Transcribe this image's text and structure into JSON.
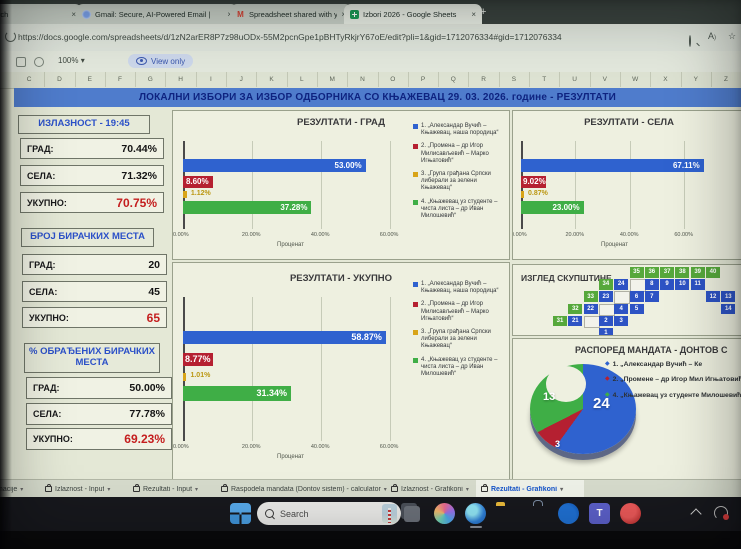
{
  "browser": {
    "tabs": [
      {
        "title": "- Search",
        "icon": "none",
        "active": false
      },
      {
        "title": "Gmail: Secure, AI-Powered Email |",
        "icon": "sparkle",
        "active": false
      },
      {
        "title": "Spreadsheet shared with you: “Izl",
        "icon": "gmail",
        "active": false
      },
      {
        "title": "Izbori 2026 - Google Sheets",
        "icon": "sheets",
        "active": true
      }
    ],
    "new_tab": "+",
    "close": "×",
    "url": "https://docs.google.com/spreadsheets/d/1zN2arER8P7z98uODx-55M2pcnGpe1pBHTyRkjrY67oE/edit?pli=1&gid=1712076334#gid=1712076334"
  },
  "toolbar": {
    "zoom": "100%",
    "zoom_arrow": "▾",
    "view_only": "View only"
  },
  "columns": [
    "C",
    "D",
    "E",
    "F",
    "G",
    "H",
    "I",
    "J",
    "K",
    "L",
    "M",
    "N",
    "O",
    "P",
    "Q",
    "R",
    "S",
    "T",
    "U",
    "V",
    "W",
    "X",
    "Y",
    "Z"
  ],
  "title_bar": "ЛОКАЛНИ ИЗБОРИ ЗА ИЗБОР ОДБОРНИКА СО КЊАЖЕВАЦ  29. 03. 2026. године - РЕЗУЛТАТИ",
  "stats": {
    "turnout": {
      "header": "ИЗЛАЗНОСТ - 19:45",
      "rows": [
        {
          "label": "ГРАД:",
          "value": "70.44%",
          "red": false
        },
        {
          "label": "СЕЛА:",
          "value": "71.32%",
          "red": false
        },
        {
          "label": "УКУПНО:",
          "value": "70.75%",
          "red": true
        }
      ]
    },
    "stations": {
      "header": "БРОЈ БИРАЧКИХ МЕСТА",
      "rows": [
        {
          "label": "ГРАД:",
          "value": "20",
          "red": false
        },
        {
          "label": "СЕЛА:",
          "value": "45",
          "red": false
        },
        {
          "label": "УКУПНО:",
          "value": "65",
          "red": true
        }
      ]
    },
    "processed": {
      "header": "% ОБРАЂЕНИХ БИРАЧКИХ МЕСТА",
      "rows": [
        {
          "label": "ГРАД:",
          "value": "50.00%",
          "red": false
        },
        {
          "label": "СЕЛА:",
          "value": "77.78%",
          "red": false
        },
        {
          "label": "УКУПНО:",
          "value": "69.23%",
          "red": true
        }
      ]
    }
  },
  "parties": [
    {
      "name": "1. „Александар Вучић – Књажевац, наша породица“",
      "color": "#2f62cf"
    },
    {
      "name": "2. „Промена – др Игор Милисављевић – Марко Игњатовић“",
      "color": "#b52031"
    },
    {
      "name": "3. „Група грађана Српски либерали за зелени Књажевац“",
      "color": "#d8a418"
    },
    {
      "name": "4. „Књажевац уз студенте – чиста листа – др Иван Милошевић“",
      "color": "#3fae46"
    }
  ],
  "chart_data": [
    {
      "type": "bar",
      "title": "РЕЗУЛТАТИ - ГРАД",
      "orientation": "horizontal",
      "xlabel": "Проценат",
      "xlim": [
        0,
        65
      ],
      "xticks": [
        {
          "v": 0,
          "label": "0.00%"
        },
        {
          "v": 20,
          "label": "20.00%"
        },
        {
          "v": 40,
          "label": "40.00%"
        },
        {
          "v": 60,
          "label": "60.00%"
        }
      ],
      "categories": [
        "Александар Вучић – Књажевац, наша породица",
        "Промена – др Игор Милисављевић – Марко Игњатовић",
        "Група грађана Српски либерали за зелени Књажевац",
        "Књажевац уз студенте – чиста листа – др Иван Милошевић"
      ],
      "values": [
        53.0,
        8.6,
        1.12,
        37.28
      ],
      "labels": [
        "53.00%",
        "8.60%",
        "1.12%",
        "37.28%"
      ],
      "legend_position": "right"
    },
    {
      "type": "bar",
      "title": "РЕЗУЛТАТИ - СЕЛА",
      "orientation": "horizontal",
      "xlabel": "Проценат",
      "xlim": [
        0,
        72
      ],
      "xticks": [
        {
          "v": 0,
          "label": "0.00%"
        },
        {
          "v": 20,
          "label": "20.00%"
        },
        {
          "v": 40,
          "label": "40.00%"
        },
        {
          "v": 60,
          "label": "60.00%"
        }
      ],
      "categories": [
        "Александар Вучић – Књажевац, наша породица",
        "Промена – др Игор Милисављевић – Марко Игњатовић",
        "Група грађана Српски либерали за зелени Књажевац",
        "Књажевац уз студенте – чиста листа – др Иван Милошевић"
      ],
      "values": [
        67.11,
        9.02,
        0.87,
        23.0
      ],
      "labels": [
        "67.11%",
        "9.02%",
        "0.87%",
        "23.00%"
      ],
      "legend_position": "none"
    },
    {
      "type": "bar",
      "title": "РЕЗУЛТАТИ - УКУПНО",
      "orientation": "horizontal",
      "xlabel": "Проценат",
      "xlim": [
        0,
        65
      ],
      "xticks": [
        {
          "v": 0,
          "label": "0.00%"
        },
        {
          "v": 20,
          "label": "20.00%"
        },
        {
          "v": 40,
          "label": "40.00%"
        },
        {
          "v": 60,
          "label": "60.00%"
        }
      ],
      "categories": [
        "Александар Вучић – Књажевац, наша породица",
        "Промена – др Игор Милисављевић – Марко Игњатовић",
        "Група грађана Српски либерали за зелени Књажевац",
        "Књажевац уз студенте – чиста листа – др Иван Милошевић"
      ],
      "values": [
        58.87,
        8.77,
        1.01,
        31.34
      ],
      "labels": [
        "58.87%",
        "8.77%",
        "1.01%",
        "31.34%"
      ],
      "legend_position": "right"
    },
    {
      "type": "donut",
      "title": "РАСПОРЕД МАНДАТА - ДОНТОВ С",
      "total_seats": 40,
      "series": [
        {
          "name": "Александар Вучић",
          "value": 24,
          "color": "#2f62cf",
          "label": "24"
        },
        {
          "name": "Промене – др Игор Милисављевић",
          "value": 3,
          "color": "#b52031",
          "label": "3"
        },
        {
          "name": "Књажевац уз студенте",
          "value": 13,
          "color": "#3fae46",
          "label": "13"
        }
      ]
    }
  ],
  "assembly": {
    "title": "ИЗГЛЕД СКУПШТИНЕ",
    "seat_colors": {
      "g": "#56a83b",
      "b": "#2d53c4",
      "w": "#f2f2ea"
    },
    "seats": [
      [
        0,
        5,
        "35",
        "g"
      ],
      [
        0,
        6,
        "36",
        "g"
      ],
      [
        0,
        7,
        "37",
        "g"
      ],
      [
        0,
        8,
        "38",
        "g"
      ],
      [
        0,
        9,
        "39",
        "g"
      ],
      [
        0,
        10,
        "40",
        "g"
      ],
      [
        1,
        3,
        "34",
        "g"
      ],
      [
        1,
        4,
        "24",
        "b"
      ],
      [
        1,
        5,
        "",
        "w"
      ],
      [
        1,
        6,
        "8",
        "b"
      ],
      [
        1,
        7,
        "9",
        "b"
      ],
      [
        1,
        8,
        "10",
        "b"
      ],
      [
        1,
        9,
        "11",
        "b"
      ],
      [
        2,
        2,
        "33",
        "g"
      ],
      [
        2,
        3,
        "23",
        "b"
      ],
      [
        2,
        4,
        "",
        "w"
      ],
      [
        2,
        5,
        "6",
        "b"
      ],
      [
        2,
        6,
        "7",
        "b"
      ],
      [
        2,
        10,
        "12",
        "b"
      ],
      [
        2,
        11,
        "13",
        "b"
      ],
      [
        3,
        1,
        "32",
        "g"
      ],
      [
        3,
        2,
        "22",
        "b"
      ],
      [
        3,
        3,
        "",
        "w"
      ],
      [
        3,
        4,
        "4",
        "b"
      ],
      [
        3,
        5,
        "5",
        "b"
      ],
      [
        3,
        11,
        "14",
        "b"
      ],
      [
        4,
        0,
        "31",
        "g"
      ],
      [
        4,
        1,
        "21",
        "b"
      ],
      [
        4,
        2,
        "",
        "w"
      ],
      [
        4,
        3,
        "2",
        "b"
      ],
      [
        4,
        4,
        "3",
        "b"
      ],
      [
        5,
        3,
        "1",
        "b"
      ]
    ]
  },
  "mandates_legend": [
    {
      "color": "#2f62cf",
      "text": "1. „Александар Вучић – Ке"
    },
    {
      "color": "#b52031",
      "text": "2. „Промене – др Игор Мил Игњатовић“"
    },
    {
      "color": "#3fae46",
      "text": "4. „Књажевац уз студенте Милошевић“"
    }
  ],
  "sheet_tabs": [
    {
      "label": "Informacije",
      "locked": false,
      "active": false
    },
    {
      "label": "Izlaznost - Input",
      "locked": true,
      "active": false
    },
    {
      "label": "Rezultati - Input",
      "locked": true,
      "active": false
    },
    {
      "label": "Raspodela mandata (Dontov sistem) - calculator",
      "locked": true,
      "active": false
    },
    {
      "label": "Izlaznost - Grafikoni",
      "locked": true,
      "active": false
    },
    {
      "label": "Rezultati - Grafikoni",
      "locked": true,
      "active": true
    }
  ],
  "taskbar": {
    "search_placeholder": "Search"
  }
}
